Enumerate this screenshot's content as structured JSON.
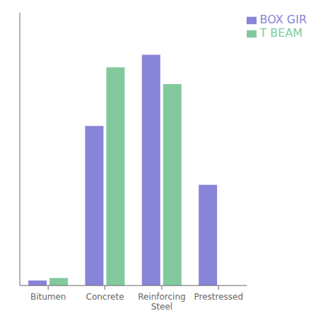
{
  "chart_data": {
    "type": "bar",
    "categories": [
      "Bitumen",
      "Concrete",
      "Reinforcing\nSteel",
      "Prestressed"
    ],
    "series": [
      {
        "name": "BOX GIR",
        "values": [
          0.12,
          3.8,
          5.5,
          2.4
        ]
      },
      {
        "name": "T BEAM",
        "values": [
          0.18,
          5.2,
          4.8,
          0.0
        ]
      }
    ],
    "ylim": [
      0,
      6.5
    ],
    "yticks": [],
    "grid": false,
    "legend": "upper right",
    "tick_labels": "x"
  }
}
